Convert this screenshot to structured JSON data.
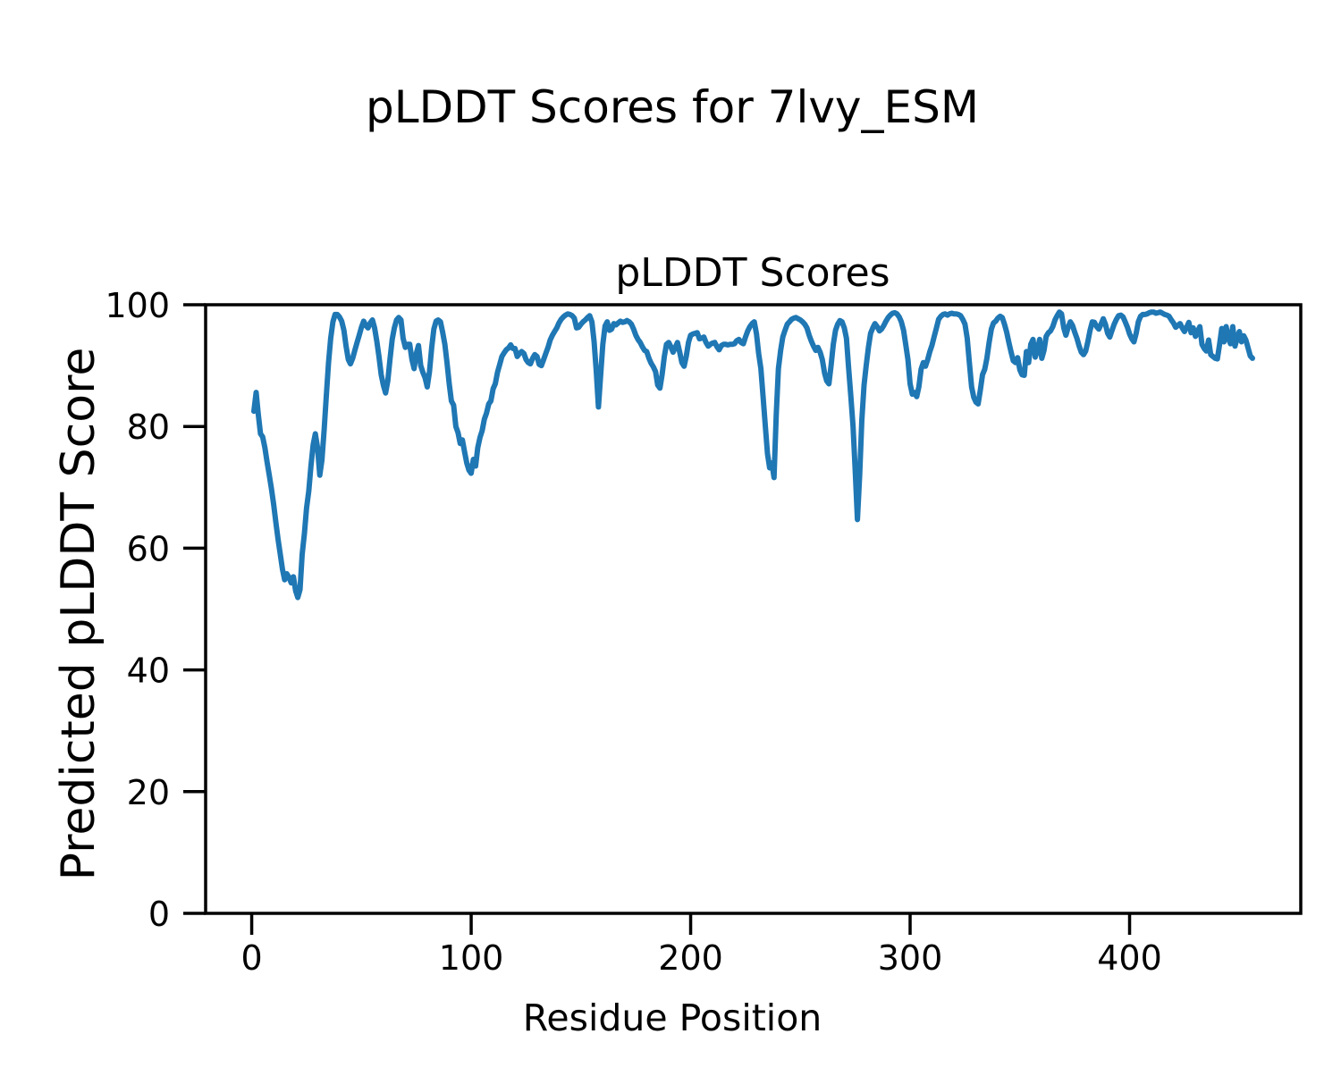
{
  "figure": {
    "suptitle": "pLDDT Scores for 7lvy_ESM"
  },
  "chart_data": {
    "type": "line",
    "title": "pLDDT Scores",
    "xlabel": "Residue Position",
    "ylabel": "Predicted pLDDT Score",
    "xlim": [
      -21,
      478
    ],
    "ylim": [
      0,
      100
    ],
    "xticks": [
      0,
      100,
      200,
      300,
      400
    ],
    "yticks": [
      0,
      20,
      40,
      60,
      80,
      100
    ],
    "grid": false,
    "legend": "none",
    "background_color": "#ffffff",
    "text_color": "#000000",
    "spine_color": "#000000",
    "series": [
      {
        "name": "pLDDT",
        "color": "#1f77b4",
        "x_start": 1,
        "x_step": 1,
        "y": [
          82.5,
          85.6,
          82.0,
          78.8,
          78.3,
          76.5,
          74.2,
          72.0,
          69.8,
          67.2,
          64.2,
          61.5,
          59.0,
          56.6,
          54.8,
          55.8,
          55.2,
          54.3,
          55.3,
          53.0,
          51.9,
          53.2,
          59.0,
          62.4,
          66.6,
          69.4,
          73.5,
          77.0,
          78.8,
          76.5,
          72.0,
          74.5,
          79.5,
          85.0,
          90.5,
          94.5,
          97.2,
          98.4,
          98.4,
          98.0,
          97.3,
          95.8,
          93.2,
          91.0,
          90.3,
          91.2,
          92.5,
          93.8,
          95.0,
          96.3,
          97.3,
          96.6,
          96.2,
          97.0,
          97.5,
          96.2,
          94.0,
          91.5,
          88.5,
          86.8,
          85.5,
          87.5,
          91.0,
          94.3,
          96.2,
          97.5,
          97.9,
          97.5,
          94.5,
          93.0,
          93.5,
          93.5,
          91.0,
          89.5,
          92.0,
          93.3,
          90.0,
          88.9,
          88.0,
          86.5,
          89.0,
          93.0,
          96.0,
          97.3,
          97.5,
          97.2,
          95.5,
          93.5,
          90.5,
          87.0,
          84.2,
          83.5,
          80.0,
          79.0,
          77.2,
          77.8,
          75.8,
          74.0,
          72.8,
          72.3,
          74.6,
          73.5,
          76.5,
          78.2,
          79.3,
          81.2,
          82.2,
          83.7,
          84.2,
          86.2,
          87.0,
          88.9,
          90.2,
          91.5,
          92.1,
          92.6,
          92.9,
          93.4,
          92.8,
          92.8,
          91.5,
          92.0,
          92.3,
          92.0,
          91.0,
          90.5,
          90.3,
          91.2,
          91.8,
          91.5,
          90.2,
          90.0,
          91.0,
          92.0,
          93.0,
          94.2,
          95.0,
          95.6,
          96.2,
          97.0,
          97.6,
          98.0,
          98.3,
          98.5,
          98.4,
          98.2,
          97.8,
          96.2,
          96.3,
          96.8,
          97.2,
          97.5,
          97.9,
          98.2,
          97.2,
          94.0,
          89.0,
          83.2,
          88.5,
          93.5,
          96.5,
          97.2,
          95.8,
          96.0,
          96.9,
          96.7,
          97.0,
          97.3,
          97.1,
          97.2,
          97.4,
          97.2,
          96.8,
          96.0,
          95.0,
          94.3,
          93.8,
          93.1,
          92.5,
          92.3,
          91.2,
          90.4,
          89.8,
          89.0,
          86.8,
          86.3,
          88.5,
          91.5,
          93.5,
          93.8,
          93.1,
          92.2,
          93.0,
          93.8,
          92.2,
          90.5,
          89.9,
          91.5,
          93.8,
          95.0,
          95.2,
          95.3,
          95.4,
          94.4,
          94.5,
          94.7,
          93.8,
          93.2,
          93.5,
          93.7,
          93.8,
          93.1,
          92.6,
          93.3,
          93.5,
          93.5,
          93.4,
          93.5,
          93.5,
          93.6,
          94.1,
          94.3,
          93.8,
          93.6,
          94.7,
          95.7,
          96.4,
          96.9,
          97.2,
          95.2,
          92.0,
          89.5,
          85.0,
          80.2,
          75.5,
          73.2,
          74.0,
          71.6,
          82.0,
          89.5,
          92.5,
          94.7,
          95.8,
          96.8,
          97.2,
          97.6,
          97.8,
          97.9,
          97.7,
          97.5,
          97.2,
          96.8,
          96.2,
          95.0,
          94.0,
          93.2,
          92.5,
          93.0,
          92.2,
          91.0,
          88.8,
          87.5,
          87.0,
          90.0,
          93.5,
          95.8,
          96.8,
          97.4,
          97.2,
          96.2,
          94.5,
          89.5,
          85.0,
          80.0,
          72.5,
          64.7,
          72.0,
          81.0,
          86.8,
          90.0,
          93.0,
          95.3,
          96.2,
          96.9,
          96.4,
          95.7,
          96.0,
          96.6,
          97.3,
          97.9,
          98.3,
          98.6,
          98.7,
          98.5,
          98.0,
          97.2,
          95.8,
          93.5,
          91.0,
          87.0,
          85.3,
          85.6,
          84.9,
          86.5,
          89.4,
          90.5,
          89.9,
          91.0,
          92.3,
          93.4,
          94.8,
          96.2,
          97.6,
          98.1,
          98.4,
          98.5,
          98.3,
          98.5,
          98.6,
          98.5,
          98.5,
          98.4,
          98.2,
          97.6,
          96.8,
          94.5,
          90.5,
          86.5,
          84.8,
          84.0,
          83.7,
          86.0,
          88.5,
          89.4,
          91.2,
          93.8,
          96.0,
          97.0,
          97.3,
          97.8,
          98.1,
          97.9,
          96.8,
          95.5,
          93.8,
          92.2,
          90.8,
          90.5,
          91.3,
          89.3,
          88.5,
          88.4,
          92.3,
          90.5,
          93.5,
          94.3,
          91.4,
          92.5,
          94.3,
          91.2,
          92.5,
          94.8,
          95.4,
          95.7,
          96.4,
          97.5,
          98.2,
          98.8,
          98.5,
          96.2,
          95.0,
          96.3,
          97.2,
          96.6,
          95.5,
          94.5,
          93.2,
          92.2,
          91.8,
          92.4,
          94.0,
          95.8,
          97.2,
          97.1,
          96.4,
          96.0,
          96.8,
          97.7,
          96.8,
          95.3,
          94.7,
          95.8,
          96.8,
          97.6,
          98.2,
          98.3,
          98.0,
          97.2,
          96.3,
          95.2,
          94.4,
          93.9,
          95.3,
          97.2,
          98.1,
          98.4,
          98.4,
          98.5,
          98.7,
          98.8,
          98.8,
          98.6,
          98.7,
          98.8,
          98.6,
          98.4,
          98.3,
          98.1,
          97.5,
          97.0,
          96.3,
          96.6,
          96.9,
          96.2,
          95.6,
          96.3,
          97.1,
          95.4,
          96.2,
          94.8,
          95.6,
          96.4,
          93.5,
          92.8,
          92.4,
          94.2,
          91.8,
          91.5,
          91.2,
          91.1,
          93.5,
          96.1,
          93.9,
          96.4,
          94.5,
          93.6,
          96.4,
          93.2,
          94.5,
          95.6,
          93.9,
          94.9,
          94.2,
          92.9,
          91.6,
          91.2
        ]
      }
    ]
  }
}
